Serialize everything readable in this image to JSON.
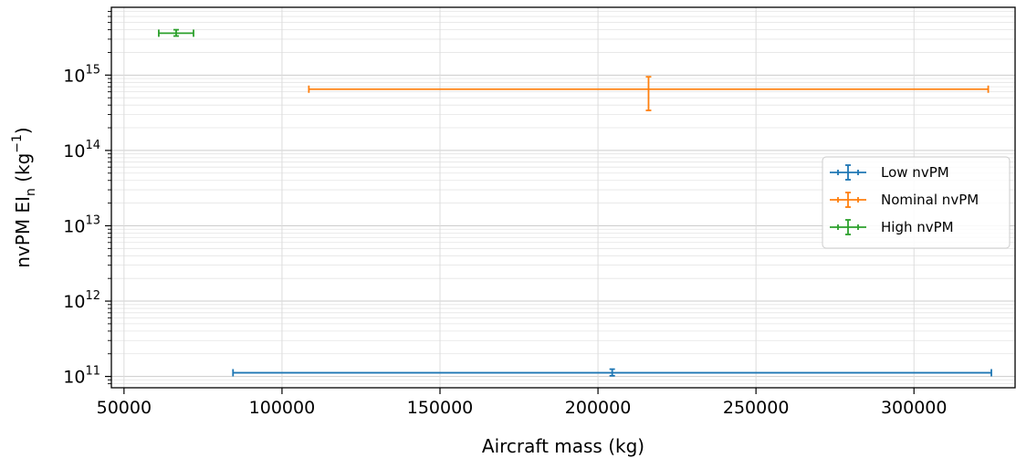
{
  "chart_data": {
    "type": "scatter",
    "title": "",
    "xlabel": "Aircraft mass (kg)",
    "ylabel": {
      "prefix": "nvPM EI",
      "sub": "n",
      "unit_open": " (kg",
      "sup": "−1",
      "unit_close": ")"
    },
    "xlim": [
      46000,
      332000
    ],
    "ylim_log10": [
      10.85,
      15.9
    ],
    "yscale": "log",
    "grid": true,
    "legend_position": "center-right",
    "x_ticks": [
      {
        "value": 50000,
        "label": "50000"
      },
      {
        "value": 100000,
        "label": "100000"
      },
      {
        "value": 150000,
        "label": "150000"
      },
      {
        "value": 200000,
        "label": "200000"
      },
      {
        "value": 250000,
        "label": "250000"
      },
      {
        "value": 300000,
        "label": "300000"
      }
    ],
    "y_ticks": [
      {
        "exp": 11,
        "base": "10",
        "sup": "11"
      },
      {
        "exp": 12,
        "base": "10",
        "sup": "12"
      },
      {
        "exp": 13,
        "base": "10",
        "sup": "13"
      },
      {
        "exp": 14,
        "base": "10",
        "sup": "14"
      },
      {
        "exp": 15,
        "base": "10",
        "sup": "15"
      }
    ],
    "series": [
      {
        "name": "Low nvPM",
        "color": "#1f77b4",
        "x": 204500,
        "x_min": 84500,
        "x_max": 324500,
        "y": 112000000000.0,
        "y_min": 102000000000.0,
        "y_max": 125000000000.0
      },
      {
        "name": "Nominal nvPM",
        "color": "#ff7f0e",
        "x": 216000,
        "x_min": 108500,
        "x_max": 323500,
        "y": 650000000000000.0,
        "y_min": 340000000000000.0,
        "y_max": 950000000000000.0
      },
      {
        "name": "High nvPM",
        "color": "#2ca02c",
        "x": 66500,
        "x_min": 61000,
        "x_max": 72000,
        "y": 3600000000000000.0,
        "y_min": 3300000000000000.0,
        "y_max": 4000000000000000.0
      }
    ]
  }
}
